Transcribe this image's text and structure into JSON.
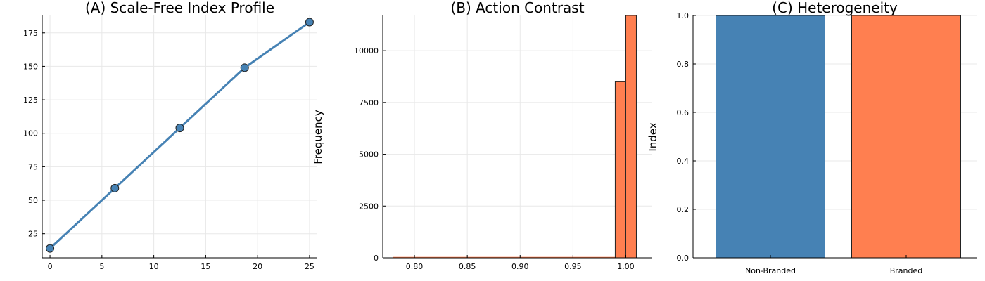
{
  "colors": {
    "blue": "#4682b4",
    "orange": "#ff7f50"
  },
  "chart_data": [
    {
      "type": "line",
      "title": "(A) Scale-Free Index Profile",
      "xlabel": "",
      "ylabel": "",
      "x": [
        0,
        6.25,
        12.5,
        18.75,
        25
      ],
      "series": [
        {
          "values": [
            14,
            59,
            104,
            149,
            183
          ]
        }
      ],
      "xlim": [
        -0.75,
        25.75
      ],
      "ylim": [
        7,
        188
      ],
      "xticks": [
        0,
        5,
        10,
        15,
        20,
        25
      ],
      "yticks": [
        25,
        50,
        75,
        100,
        125,
        150,
        175
      ],
      "grid": true,
      "markers": true
    },
    {
      "type": "bar",
      "subtype": "histogram",
      "title": "(B) Action Contrast",
      "xlabel": "",
      "ylabel": "Frequency",
      "bins": [
        {
          "x0": 0.78,
          "x1": 0.8,
          "count": 15
        },
        {
          "x0": 0.8,
          "x1": 0.85,
          "count": 10
        },
        {
          "x0": 0.85,
          "x1": 0.9,
          "count": 8
        },
        {
          "x0": 0.9,
          "x1": 0.95,
          "count": 0
        },
        {
          "x0": 0.95,
          "x1": 0.99,
          "count": 0
        },
        {
          "x0": 0.99,
          "x1": 1.0,
          "count": 8500
        },
        {
          "x0": 1.0,
          "x1": 1.01,
          "count": 11700
        }
      ],
      "xlim": [
        0.77,
        1.025
      ],
      "ylim": [
        0,
        11700
      ],
      "xticks": [
        "0.80",
        "0.85",
        "0.90",
        "0.95",
        "1.00"
      ],
      "yticks": [
        0,
        2500,
        5000,
        7500,
        10000
      ],
      "grid": true
    },
    {
      "type": "bar",
      "title": "(C) Heterogeneity",
      "xlabel": "",
      "ylabel": "Index",
      "categories": [
        "Non-Branded",
        "Branded"
      ],
      "values": [
        1.0,
        1.0
      ],
      "ylim": [
        0,
        1
      ],
      "yticks": [
        "0.0",
        "0.2",
        "0.4",
        "0.6",
        "0.8",
        "1.0"
      ],
      "grid": true
    }
  ]
}
